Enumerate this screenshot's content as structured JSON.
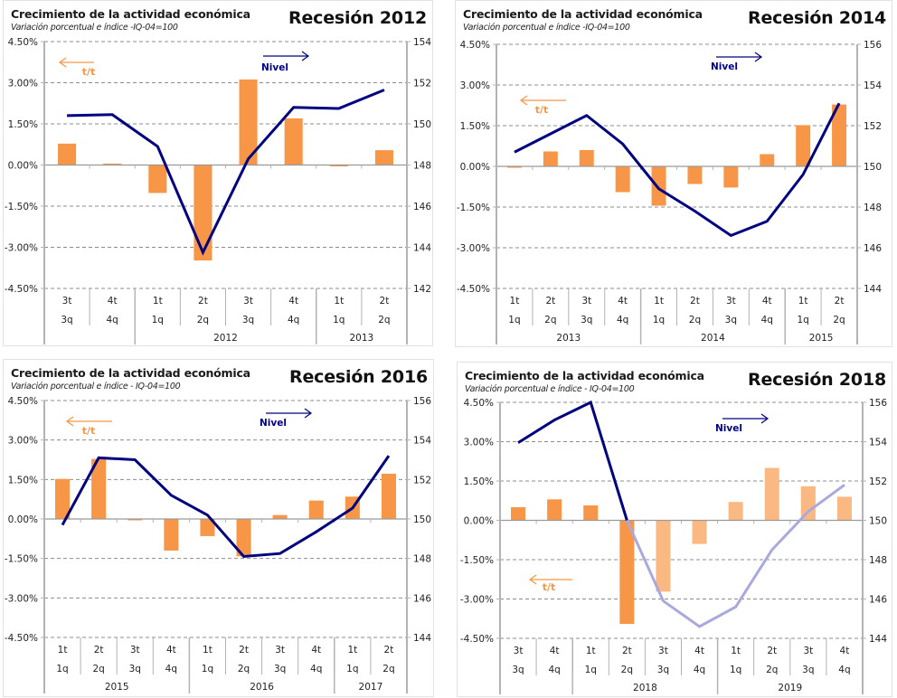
{
  "colors": {
    "bar": "#F79646",
    "bar_light": "#FAB882",
    "line": "#000080",
    "line_light": "#A9A9DE",
    "grid": "#8c8c8c",
    "axis": "#b3b3b3",
    "tt_label": "#F79646",
    "nivel_label": "#00008B"
  },
  "chart_data": [
    {
      "type": "bar+line",
      "title": "Crecimiento de la actividad económica",
      "subtitle": "Variación porcentual e índice -IQ-04=100",
      "recession_label": "Recesión 2012",
      "legend": {
        "bars": "t/t",
        "line": "Nivel"
      },
      "y_left": {
        "ticks": [
          "4.50%",
          "3.00%",
          "1.50%",
          "0.00%",
          "-1.50%",
          "-3.00%",
          "-4.50%"
        ],
        "range": [
          -4.5,
          4.5
        ]
      },
      "y_right": {
        "ticks": [
          "154",
          "152",
          "150",
          "148",
          "146",
          "144",
          "142"
        ],
        "range": [
          142,
          154
        ]
      },
      "categories": [
        {
          "es": "3t",
          "en": "3q"
        },
        {
          "es": "4t",
          "en": "4q"
        },
        {
          "es": "1t",
          "en": "1q"
        },
        {
          "es": "2t",
          "en": "2q"
        },
        {
          "es": "3t",
          "en": "3q"
        },
        {
          "es": "4t",
          "en": "4q"
        },
        {
          "es": "1t",
          "en": "1q"
        },
        {
          "es": "2t",
          "en": "2q"
        }
      ],
      "years": [
        {
          "label": "",
          "span": 2
        },
        {
          "label": "2012",
          "span": 4
        },
        {
          "label": "2013",
          "span": 2
        }
      ],
      "series": [
        {
          "name": "t/t",
          "axis": "left",
          "type": "bar",
          "values": [
            0.78,
            0.05,
            -1.02,
            -3.48,
            3.12,
            1.7,
            -0.05,
            0.54
          ],
          "projected": [
            false,
            false,
            false,
            false,
            false,
            false,
            false,
            false
          ]
        },
        {
          "name": "Nivel",
          "axis": "right",
          "type": "line",
          "values": [
            150.4,
            150.45,
            148.9,
            143.75,
            148.3,
            150.8,
            150.75,
            151.65
          ],
          "projected_from": null
        }
      ]
    },
    {
      "type": "bar+line",
      "title": "Crecimiento de la actividad económica",
      "subtitle": "Variación porcentual e índice -IQ-04=100",
      "recession_label": "Recesión 2014",
      "legend": {
        "bars": "t/t",
        "line": "Nivel"
      },
      "y_left": {
        "ticks": [
          "4.50%",
          "3.00%",
          "1.50%",
          "0.00%",
          "-1.50%",
          "-3.00%",
          "-4.50%"
        ],
        "range": [
          -4.5,
          4.5
        ]
      },
      "y_right": {
        "ticks": [
          "156",
          "154",
          "152",
          "150",
          "148",
          "146",
          "144"
        ],
        "range": [
          144,
          156
        ]
      },
      "categories": [
        {
          "es": "1t",
          "en": "1q"
        },
        {
          "es": "2t",
          "en": "2q"
        },
        {
          "es": "3t",
          "en": "3q"
        },
        {
          "es": "4t",
          "en": "4q"
        },
        {
          "es": "1t",
          "en": "1q"
        },
        {
          "es": "2t",
          "en": "2q"
        },
        {
          "es": "3t",
          "en": "3q"
        },
        {
          "es": "4t",
          "en": "4q"
        },
        {
          "es": "1t",
          "en": "1q"
        },
        {
          "es": "2t",
          "en": "2q"
        }
      ],
      "years": [
        {
          "label": "2013",
          "span": 4
        },
        {
          "label": "2014",
          "span": 4
        },
        {
          "label": "2015",
          "span": 2
        }
      ],
      "series": [
        {
          "name": "t/t",
          "axis": "left",
          "type": "bar",
          "values": [
            -0.05,
            0.55,
            0.6,
            -0.95,
            -1.45,
            -0.65,
            -0.78,
            0.45,
            1.52,
            2.28
          ],
          "projected": [
            false,
            false,
            false,
            false,
            false,
            false,
            false,
            false,
            false,
            false
          ]
        },
        {
          "name": "Nivel",
          "axis": "right",
          "type": "line",
          "values": [
            150.7,
            151.6,
            152.5,
            151.1,
            148.9,
            147.8,
            146.6,
            147.3,
            149.6,
            153.1
          ],
          "projected_from": null
        }
      ]
    },
    {
      "type": "bar+line",
      "title": "Crecimiento de la actividad económica",
      "subtitle": "Variación porcentual e índice - IQ-04=100",
      "recession_label": "Recesión 2016",
      "legend": {
        "bars": "t/t",
        "line": "Nivel"
      },
      "y_left": {
        "ticks": [
          "4.50%",
          "3.00%",
          "1.50%",
          "0.00%",
          "-1.50%",
          "-3.00%",
          "-4.50%"
        ],
        "range": [
          -4.5,
          4.5
        ]
      },
      "y_right": {
        "ticks": [
          "156",
          "154",
          "152",
          "150",
          "148",
          "146",
          "144"
        ],
        "range": [
          144,
          156
        ]
      },
      "categories": [
        {
          "es": "1t",
          "en": "1q"
        },
        {
          "es": "2t",
          "en": "2q"
        },
        {
          "es": "3t",
          "en": "3q"
        },
        {
          "es": "4t",
          "en": "4q"
        },
        {
          "es": "1t",
          "en": "1q"
        },
        {
          "es": "2t",
          "en": "2q"
        },
        {
          "es": "3t",
          "en": "3q"
        },
        {
          "es": "4t",
          "en": "4q"
        },
        {
          "es": "1t",
          "en": "1q"
        },
        {
          "es": "2t",
          "en": "2q"
        }
      ],
      "years": [
        {
          "label": "2015",
          "span": 4
        },
        {
          "label": "2016",
          "span": 4
        },
        {
          "label": "2017",
          "span": 2
        }
      ],
      "series": [
        {
          "name": "t/t",
          "axis": "left",
          "type": "bar",
          "values": [
            1.52,
            2.28,
            -0.05,
            -1.2,
            -0.65,
            -1.42,
            0.15,
            0.7,
            0.85,
            1.72
          ],
          "projected": [
            false,
            false,
            false,
            false,
            false,
            false,
            false,
            false,
            false,
            false
          ]
        },
        {
          "name": "Nivel",
          "axis": "right",
          "type": "line",
          "values": [
            149.7,
            153.1,
            153.0,
            151.2,
            150.2,
            148.1,
            148.25,
            149.35,
            150.55,
            153.2
          ],
          "projected_from": null
        }
      ]
    },
    {
      "type": "bar+line",
      "title": "Crecimiento de la actividad económica",
      "subtitle": "Variación porcentual e índice - IQ-04=100",
      "recession_label": "Recesión 2018",
      "legend": {
        "bars": "t/t",
        "line": "Nivel"
      },
      "y_left": {
        "ticks": [
          "4.50%",
          "3.00%",
          "1.50%",
          "0.00%",
          "-1.50%",
          "-3.00%",
          "-4.50%"
        ],
        "range": [
          -4.5,
          4.5
        ]
      },
      "y_right": {
        "ticks": [
          "156",
          "154",
          "152",
          "150",
          "148",
          "146",
          "144"
        ],
        "range": [
          144,
          156
        ]
      },
      "categories": [
        {
          "es": "3t",
          "en": "3q"
        },
        {
          "es": "4t",
          "en": "4q"
        },
        {
          "es": "1t",
          "en": "1q"
        },
        {
          "es": "2t",
          "en": "2q"
        },
        {
          "es": "3t",
          "en": "3q"
        },
        {
          "es": "4t",
          "en": "4q"
        },
        {
          "es": "1t",
          "en": "1q"
        },
        {
          "es": "2t",
          "en": "2q"
        },
        {
          "es": "3t",
          "en": "3q"
        },
        {
          "es": "4t",
          "en": "4q"
        }
      ],
      "years": [
        {
          "label": "",
          "span": 2
        },
        {
          "label": "2018",
          "span": 4
        },
        {
          "label": "2019",
          "span": 4
        }
      ],
      "series": [
        {
          "name": "t/t",
          "axis": "left",
          "type": "bar",
          "values": [
            0.5,
            0.8,
            0.57,
            -3.95,
            -2.72,
            -0.9,
            0.7,
            2.0,
            1.3,
            0.9
          ],
          "projected": [
            false,
            false,
            false,
            false,
            true,
            true,
            true,
            true,
            true,
            true
          ]
        },
        {
          "name": "Nivel",
          "axis": "right",
          "type": "line",
          "values": [
            153.95,
            155.1,
            156.0,
            150.0,
            145.9,
            144.6,
            145.6,
            148.5,
            150.45,
            151.8
          ],
          "projected_from": 3
        }
      ]
    }
  ]
}
